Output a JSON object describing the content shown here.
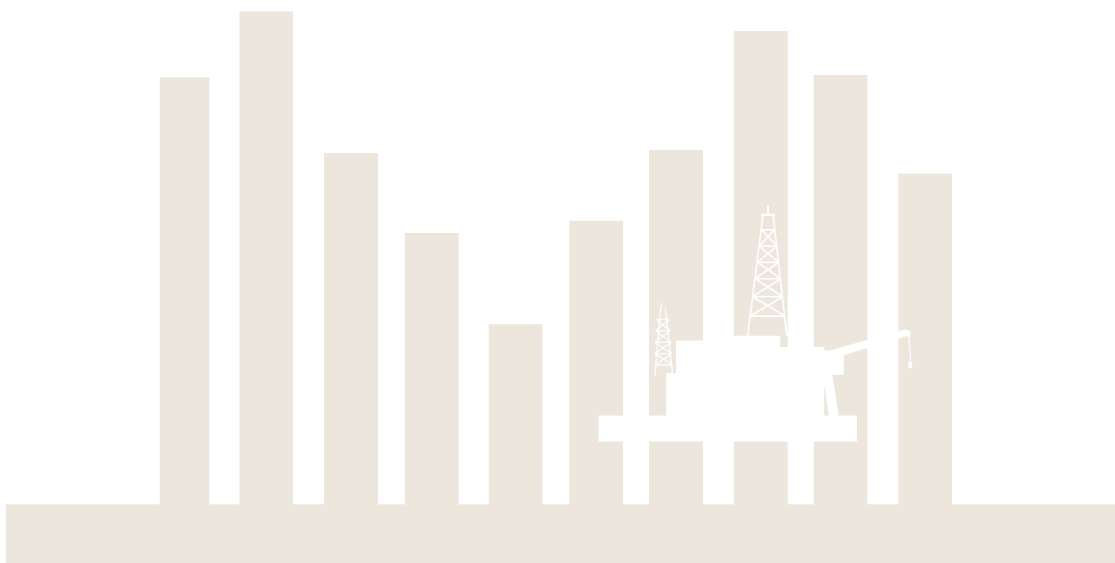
{
  "illustration": {
    "theme": "skyline-bars-with-offshore-oil-rig",
    "colors": {
      "background": "#ffffff",
      "bar": "#ece6dc",
      "rig": "#ffffff"
    },
    "bar_relative_heights": [
      0.866,
      1.0,
      0.712,
      0.551,
      0.366,
      0.575,
      0.719,
      0.96,
      0.871,
      0.671
    ],
    "icons": [
      "oil-rig-icon",
      "small-derrick-icon",
      "tall-derrick-icon",
      "crane-icon"
    ]
  }
}
